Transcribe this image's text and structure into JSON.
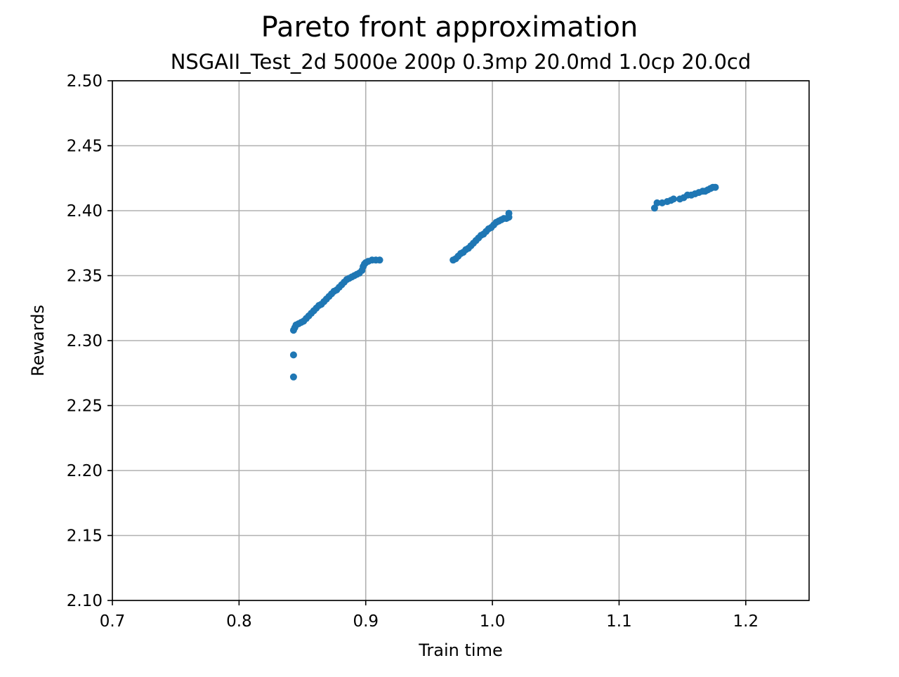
{
  "chart_data": {
    "type": "scatter",
    "suptitle": "Pareto front approximation",
    "title": "NSGAII_Test_2d 5000e 200p 0.3mp 20.0md 1.0cp 20.0cd",
    "xlabel": "Train time",
    "ylabel": "Rewards",
    "xlim": [
      0.7,
      1.25
    ],
    "ylim": [
      2.1,
      2.5
    ],
    "xticks": [
      0.7,
      0.8,
      0.9,
      1.0,
      1.1,
      1.2
    ],
    "xtick_labels": [
      "0.7",
      "0.8",
      "0.9",
      "1.0",
      "1.1",
      "1.2"
    ],
    "yticks": [
      2.1,
      2.15,
      2.2,
      2.25,
      2.3,
      2.35,
      2.4,
      2.45,
      2.5
    ],
    "ytick_labels": [
      "2.10",
      "2.15",
      "2.20",
      "2.25",
      "2.30",
      "2.35",
      "2.40",
      "2.45",
      "2.50"
    ],
    "grid": true,
    "marker_color": "#1f77b4",
    "series": [
      {
        "points": [
          [
            0.843,
            2.272
          ],
          [
            0.843,
            2.289
          ],
          [
            0.843,
            2.308
          ],
          [
            0.844,
            2.31
          ],
          [
            0.845,
            2.312
          ],
          [
            0.847,
            2.313
          ],
          [
            0.849,
            2.314
          ],
          [
            0.851,
            2.315
          ],
          [
            0.853,
            2.317
          ],
          [
            0.855,
            2.319
          ],
          [
            0.857,
            2.321
          ],
          [
            0.859,
            2.323
          ],
          [
            0.861,
            2.325
          ],
          [
            0.863,
            2.327
          ],
          [
            0.865,
            2.328
          ],
          [
            0.867,
            2.33
          ],
          [
            0.869,
            2.332
          ],
          [
            0.871,
            2.334
          ],
          [
            0.873,
            2.336
          ],
          [
            0.875,
            2.338
          ],
          [
            0.877,
            2.339
          ],
          [
            0.879,
            2.341
          ],
          [
            0.881,
            2.343
          ],
          [
            0.883,
            2.345
          ],
          [
            0.885,
            2.347
          ],
          [
            0.887,
            2.348
          ],
          [
            0.889,
            2.349
          ],
          [
            0.891,
            2.35
          ],
          [
            0.893,
            2.351
          ],
          [
            0.895,
            2.352
          ],
          [
            0.897,
            2.354
          ],
          [
            0.898,
            2.357
          ],
          [
            0.899,
            2.359
          ],
          [
            0.9,
            2.36
          ],
          [
            0.902,
            2.361
          ],
          [
            0.905,
            2.362
          ],
          [
            0.908,
            2.362
          ],
          [
            0.911,
            2.362
          ],
          [
            0.969,
            2.362
          ],
          [
            0.971,
            2.363
          ],
          [
            0.973,
            2.365
          ],
          [
            0.975,
            2.367
          ],
          [
            0.977,
            2.368
          ],
          [
            0.979,
            2.37
          ],
          [
            0.981,
            2.371
          ],
          [
            0.983,
            2.373
          ],
          [
            0.985,
            2.375
          ],
          [
            0.987,
            2.377
          ],
          [
            0.989,
            2.379
          ],
          [
            0.991,
            2.381
          ],
          [
            0.993,
            2.382
          ],
          [
            0.995,
            2.384
          ],
          [
            0.997,
            2.386
          ],
          [
            0.999,
            2.387
          ],
          [
            1.001,
            2.389
          ],
          [
            1.003,
            2.391
          ],
          [
            1.005,
            2.392
          ],
          [
            1.007,
            2.393
          ],
          [
            1.009,
            2.394
          ],
          [
            1.011,
            2.394
          ],
          [
            1.013,
            2.395
          ],
          [
            1.013,
            2.398
          ],
          [
            1.128,
            2.402
          ],
          [
            1.13,
            2.406
          ],
          [
            1.134,
            2.406
          ],
          [
            1.138,
            2.407
          ],
          [
            1.141,
            2.408
          ],
          [
            1.143,
            2.409
          ],
          [
            1.148,
            2.409
          ],
          [
            1.151,
            2.41
          ],
          [
            1.154,
            2.412
          ],
          [
            1.157,
            2.412
          ],
          [
            1.16,
            2.413
          ],
          [
            1.163,
            2.414
          ],
          [
            1.166,
            2.415
          ],
          [
            1.168,
            2.415
          ],
          [
            1.17,
            2.416
          ],
          [
            1.172,
            2.417
          ],
          [
            1.174,
            2.418
          ],
          [
            1.176,
            2.418
          ]
        ]
      }
    ]
  }
}
